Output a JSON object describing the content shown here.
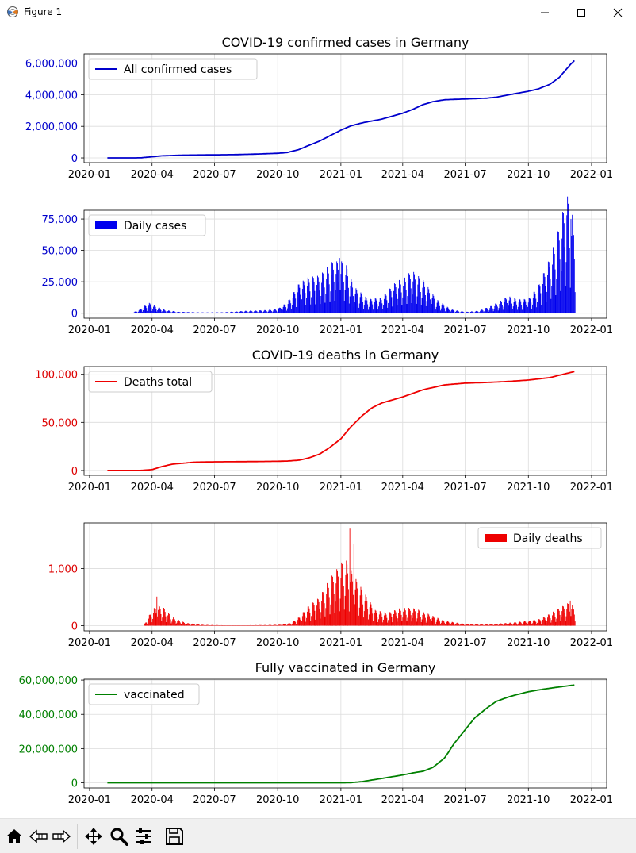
{
  "window": {
    "title": "Figure 1",
    "controls": [
      "minimize-icon",
      "maximize-icon",
      "close-icon"
    ]
  },
  "toolbar": {
    "buttons": [
      "home-icon",
      "back-icon",
      "forward-icon",
      "pan-icon",
      "zoom-icon",
      "configure-subplots-icon",
      "save-icon"
    ]
  },
  "x_axis": {
    "range": [
      "2019-12-24",
      "2022-01-23"
    ],
    "ticks": [
      "2020-01",
      "2020-04",
      "2020-07",
      "2020-10",
      "2021-01",
      "2021-04",
      "2021-07",
      "2021-10",
      "2022-01"
    ]
  },
  "chart_data": [
    {
      "type": "line",
      "title": "COVID-19 confirmed cases in Germany",
      "color": "#0000cc",
      "tick_color": "#0000cc",
      "legend": "top-left",
      "grid": true,
      "ylim": [
        -300000,
        6580000
      ],
      "yticks": [
        0,
        2000000,
        4000000,
        6000000
      ],
      "ytick_labels": [
        "0",
        "2,000,000",
        "4,000,000",
        "6,000,000"
      ],
      "series": [
        {
          "name": "All confirmed cases",
          "points": [
            [
              "2020-01-27",
              0
            ],
            [
              "2020-03-01",
              150
            ],
            [
              "2020-03-15",
              5800
            ],
            [
              "2020-04-01",
              73500
            ],
            [
              "2020-04-15",
              130000
            ],
            [
              "2020-05-15",
              175000
            ],
            [
              "2020-07-01",
              195000
            ],
            [
              "2020-08-01",
              211000
            ],
            [
              "2020-09-01",
              245000
            ],
            [
              "2020-10-01",
              292000
            ],
            [
              "2020-10-15",
              341000
            ],
            [
              "2020-11-01",
              532000
            ],
            [
              "2020-11-15",
              790000
            ],
            [
              "2020-12-01",
              1067000
            ],
            [
              "2020-12-15",
              1380000
            ],
            [
              "2021-01-01",
              1760000
            ],
            [
              "2021-01-15",
              2020000
            ],
            [
              "2021-02-01",
              2220000
            ],
            [
              "2021-03-01",
              2450000
            ],
            [
              "2021-04-01",
              2830000
            ],
            [
              "2021-04-15",
              3060000
            ],
            [
              "2021-05-01",
              3380000
            ],
            [
              "2021-05-15",
              3560000
            ],
            [
              "2021-06-01",
              3680000
            ],
            [
              "2021-07-01",
              3730000
            ],
            [
              "2021-08-01",
              3780000
            ],
            [
              "2021-08-15",
              3840000
            ],
            [
              "2021-09-01",
              3980000
            ],
            [
              "2021-10-01",
              4220000
            ],
            [
              "2021-10-15",
              4360000
            ],
            [
              "2021-11-01",
              4650000
            ],
            [
              "2021-11-15",
              5090000
            ],
            [
              "2021-12-01",
              5900000
            ],
            [
              "2021-12-08",
              6200000
            ]
          ]
        }
      ]
    },
    {
      "type": "bar",
      "title": "",
      "color": "#0000ee",
      "tick_color": "#0000cc",
      "legend": "top-left",
      "grid": true,
      "ylim": [
        -4000,
        82000
      ],
      "yticks": [
        0,
        25000,
        50000,
        75000
      ],
      "ytick_labels": [
        "0",
        "25,000",
        "50,000",
        "75,000"
      ],
      "series": [
        {
          "name": "Daily cases",
          "envelope": [
            [
              "2020-03-01",
              0
            ],
            [
              "2020-03-10",
              1500
            ],
            [
              "2020-03-20",
              4500
            ],
            [
              "2020-03-28",
              6500
            ],
            [
              "2020-04-05",
              5000
            ],
            [
              "2020-04-20",
              2000
            ],
            [
              "2020-05-10",
              900
            ],
            [
              "2020-06-15",
              500
            ],
            [
              "2020-07-15",
              600
            ],
            [
              "2020-08-15",
              1500
            ],
            [
              "2020-09-15",
              2000
            ],
            [
              "2020-10-01",
              2800
            ],
            [
              "2020-10-15",
              7000
            ],
            [
              "2020-11-01",
              19000
            ],
            [
              "2020-11-15",
              23000
            ],
            [
              "2020-12-01",
              24000
            ],
            [
              "2020-12-20",
              33000
            ],
            [
              "2021-01-07",
              33000
            ],
            [
              "2021-01-20",
              17000
            ],
            [
              "2021-02-10",
              9000
            ],
            [
              "2021-03-01",
              10000
            ],
            [
              "2021-03-20",
              19000
            ],
            [
              "2021-04-15",
              27000
            ],
            [
              "2021-05-01",
              21000
            ],
            [
              "2021-05-20",
              9000
            ],
            [
              "2021-06-10",
              2500
            ],
            [
              "2021-07-01",
              800
            ],
            [
              "2021-07-20",
              1500
            ],
            [
              "2021-08-10",
              5000
            ],
            [
              "2021-09-01",
              11000
            ],
            [
              "2021-09-15",
              9000
            ],
            [
              "2021-10-01",
              9000
            ],
            [
              "2021-10-15",
              17000
            ],
            [
              "2021-11-01",
              35000
            ],
            [
              "2021-11-15",
              55000
            ],
            [
              "2021-11-26",
              76000
            ],
            [
              "2021-12-08",
              56000
            ]
          ],
          "peaks": [
            [
              "2020-12-30",
              44000
            ],
            [
              "2021-11-26",
              78000
            ],
            [
              "2021-12-02",
              75000
            ]
          ]
        }
      ]
    },
    {
      "type": "line",
      "title": "COVID-19 deaths in Germany",
      "color": "#ee0000",
      "tick_color": "#dd0000",
      "legend": "top-left",
      "grid": true,
      "ylim": [
        -5000,
        108000
      ],
      "yticks": [
        0,
        50000,
        100000
      ],
      "ytick_labels": [
        "0",
        "50,000",
        "100,000"
      ],
      "series": [
        {
          "name": "Deaths total",
          "points": [
            [
              "2020-01-27",
              0
            ],
            [
              "2020-03-15",
              10
            ],
            [
              "2020-04-01",
              900
            ],
            [
              "2020-04-15",
              4000
            ],
            [
              "2020-05-01",
              6600
            ],
            [
              "2020-06-01",
              8600
            ],
            [
              "2020-07-01",
              9000
            ],
            [
              "2020-08-01",
              9150
            ],
            [
              "2020-09-01",
              9300
            ],
            [
              "2020-10-01",
              9550
            ],
            [
              "2020-10-15",
              9800
            ],
            [
              "2020-11-01",
              10700
            ],
            [
              "2020-11-15",
              13000
            ],
            [
              "2020-12-01",
              17000
            ],
            [
              "2020-12-15",
              23500
            ],
            [
              "2021-01-01",
              33000
            ],
            [
              "2021-01-15",
              45000
            ],
            [
              "2021-02-01",
              57000
            ],
            [
              "2021-02-15",
              65000
            ],
            [
              "2021-03-01",
              70000
            ],
            [
              "2021-04-01",
              76500
            ],
            [
              "2021-05-01",
              84000
            ],
            [
              "2021-06-01",
              89000
            ],
            [
              "2021-07-01",
              90800
            ],
            [
              "2021-08-01",
              91500
            ],
            [
              "2021-09-01",
              92500
            ],
            [
              "2021-10-01",
              94000
            ],
            [
              "2021-11-01",
              96500
            ],
            [
              "2021-11-15",
              99000
            ],
            [
              "2021-12-08",
              103000
            ]
          ]
        }
      ]
    },
    {
      "type": "bar",
      "title": "",
      "color": "#ee0000",
      "tick_color": "#dd0000",
      "legend": "top-right",
      "grid": true,
      "ylim": [
        -90,
        1800
      ],
      "yticks": [
        0,
        1000
      ],
      "ytick_labels": [
        "0",
        "1,000"
      ],
      "series": [
        {
          "name": "Daily deaths",
          "envelope": [
            [
              "2020-03-20",
              0
            ],
            [
              "2020-03-28",
              150
            ],
            [
              "2020-04-08",
              300
            ],
            [
              "2020-04-18",
              250
            ],
            [
              "2020-05-01",
              120
            ],
            [
              "2020-05-20",
              40
            ],
            [
              "2020-06-15",
              12
            ],
            [
              "2020-07-15",
              6
            ],
            [
              "2020-08-15",
              6
            ],
            [
              "2020-09-15",
              10
            ],
            [
              "2020-10-05",
              15
            ],
            [
              "2020-10-20",
              40
            ],
            [
              "2020-11-01",
              120
            ],
            [
              "2020-11-15",
              280
            ],
            [
              "2020-12-01",
              400
            ],
            [
              "2020-12-15",
              650
            ],
            [
              "2021-01-07",
              950
            ],
            [
              "2021-01-20",
              700
            ],
            [
              "2021-02-05",
              450
            ],
            [
              "2021-02-20",
              220
            ],
            [
              "2021-03-10",
              180
            ],
            [
              "2021-04-01",
              260
            ],
            [
              "2021-04-20",
              240
            ],
            [
              "2021-05-05",
              180
            ],
            [
              "2021-06-01",
              70
            ],
            [
              "2021-07-01",
              25
            ],
            [
              "2021-08-01",
              20
            ],
            [
              "2021-09-01",
              40
            ],
            [
              "2021-10-01",
              70
            ],
            [
              "2021-10-20",
              100
            ],
            [
              "2021-11-10",
              220
            ],
            [
              "2021-11-30",
              330
            ],
            [
              "2021-12-08",
              250
            ]
          ],
          "peaks": [
            [
              "2020-04-08",
              510
            ],
            [
              "2021-01-14",
              1700
            ],
            [
              "2021-01-20",
              1430
            ],
            [
              "2021-12-01",
              440
            ]
          ]
        }
      ]
    },
    {
      "type": "line",
      "title": "Fully vaccinated in Germany",
      "color": "#008000",
      "tick_color": "#008000",
      "legend": "top-left",
      "grid": true,
      "ylim": [
        -3000000,
        60500000
      ],
      "yticks": [
        0,
        20000000,
        40000000,
        60000000
      ],
      "ytick_labels": [
        "0",
        "20,000,000",
        "40,000,000",
        "60,000,000"
      ],
      "series": [
        {
          "name": "vaccinated",
          "points": [
            [
              "2020-01-27",
              0
            ],
            [
              "2021-01-05",
              0
            ],
            [
              "2021-01-15",
              100000
            ],
            [
              "2021-02-01",
              700000
            ],
            [
              "2021-03-01",
              2500000
            ],
            [
              "2021-04-01",
              4600000
            ],
            [
              "2021-04-15",
              5700000
            ],
            [
              "2021-05-01",
              6800000
            ],
            [
              "2021-05-15",
              9000000
            ],
            [
              "2021-06-01",
              14500000
            ],
            [
              "2021-06-15",
              23000000
            ],
            [
              "2021-07-01",
              31000000
            ],
            [
              "2021-07-15",
              38000000
            ],
            [
              "2021-08-01",
              43500000
            ],
            [
              "2021-08-15",
              47500000
            ],
            [
              "2021-09-01",
              50000000
            ],
            [
              "2021-09-15",
              51600000
            ],
            [
              "2021-10-01",
              53200000
            ],
            [
              "2021-10-15",
              54200000
            ],
            [
              "2021-11-01",
              55200000
            ],
            [
              "2021-11-15",
              56000000
            ],
            [
              "2021-12-08",
              57200000
            ]
          ]
        }
      ]
    }
  ]
}
